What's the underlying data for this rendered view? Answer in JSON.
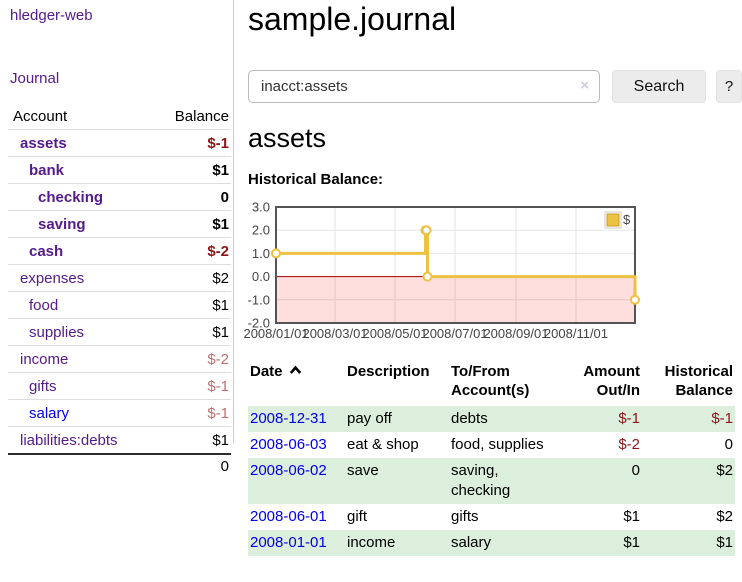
{
  "app": {
    "brand": "hledger-web",
    "nav_journal": "Journal"
  },
  "sidebar": {
    "account_header": "Account",
    "balance_header": "Balance",
    "accounts": [
      {
        "name": "assets",
        "balance": "$-1",
        "level": 1,
        "bold": true,
        "neg": "strong"
      },
      {
        "name": "bank",
        "balance": "$1",
        "level": 2,
        "bold": true
      },
      {
        "name": "checking",
        "balance": "0",
        "level": 3,
        "bold": true
      },
      {
        "name": "saving",
        "balance": "$1",
        "level": 3,
        "bold": true
      },
      {
        "name": "cash",
        "balance": "$-2",
        "level": 2,
        "bold": true,
        "neg": "strong"
      },
      {
        "name": "expenses",
        "balance": "$2",
        "level": 1
      },
      {
        "name": "food",
        "balance": "$1",
        "level": 2
      },
      {
        "name": "supplies",
        "balance": "$1",
        "level": 2
      },
      {
        "name": "income",
        "balance": "$-2",
        "level": 1,
        "neg": "muted"
      },
      {
        "name": "gifts",
        "balance": "$-1",
        "level": 2,
        "neg": "muted"
      },
      {
        "name": "salary",
        "balance": "$-1",
        "level": 2,
        "neg": "muted",
        "link": "blue"
      },
      {
        "name": "liabilities:debts",
        "balance": "$1",
        "level": 1
      }
    ],
    "total": "0"
  },
  "main": {
    "title": "sample.journal",
    "search": {
      "value": "inacct:assets",
      "clear": "×",
      "submit": "Search",
      "help": "?"
    },
    "heading": "assets",
    "chart_label": "Historical Balance:"
  },
  "register": {
    "headers": {
      "date": "Date",
      "description": "Description",
      "tofrom_1": "To/From",
      "tofrom_2": "Account(s)",
      "amount_1": "Amount",
      "amount_2": "Out/In",
      "balance_1": "Historical",
      "balance_2": "Balance"
    },
    "rows": [
      {
        "date": "2008-12-31",
        "description": "pay off",
        "accounts": "debts",
        "amount": "$-1",
        "balance": "$-1",
        "amount_neg": true,
        "balance_neg": true
      },
      {
        "date": "2008-06-03",
        "description": "eat & shop",
        "accounts": "food, supplies",
        "amount": "$-2",
        "balance": "0",
        "amount_neg": true,
        "balance_neg": false
      },
      {
        "date": "2008-06-02",
        "description": "save",
        "accounts": "saving, checking",
        "amount": "0",
        "balance": "$2",
        "amount_neg": false,
        "balance_neg": false
      },
      {
        "date": "2008-06-01",
        "description": "gift",
        "accounts": "gifts",
        "amount": "$1",
        "balance": "$2",
        "amount_neg": false,
        "balance_neg": false
      },
      {
        "date": "2008-01-01",
        "description": "income",
        "accounts": "salary",
        "amount": "$1",
        "balance": "$1",
        "amount_neg": false,
        "balance_neg": false
      }
    ]
  },
  "chart_data": {
    "type": "line",
    "step": true,
    "title": "Historical Balance:",
    "series": [
      {
        "name": "$",
        "color": "#edc240",
        "points": [
          [
            "2008-01-01",
            1
          ],
          [
            "2008-06-01",
            2
          ],
          [
            "2008-06-02",
            2
          ],
          [
            "2008-06-03",
            0
          ],
          [
            "2008-12-31",
            -1
          ]
        ]
      }
    ],
    "xlim": [
      "2008-01-01",
      "2008-12-31"
    ],
    "ylim": [
      -2,
      3
    ],
    "x_ticks": [
      "2008/01/01",
      "2008/03/01",
      "2008/05/01",
      "2008/07/01",
      "2008/09/01",
      "2008/11/01"
    ],
    "y_ticks": [
      "3.0",
      "2.0",
      "1.0",
      "0.0",
      "-1.0",
      "-2.0"
    ],
    "legend": {
      "label": "$",
      "position": "top-right"
    },
    "colors": {
      "line": "#edc240",
      "marker_fill": "#ffffff",
      "negative_fill": "rgba(255,0,0,0.13)",
      "zero_line": "#a40000",
      "grid": "#e5e5e5",
      "border": "#545454",
      "tick_text": "#444444"
    }
  }
}
